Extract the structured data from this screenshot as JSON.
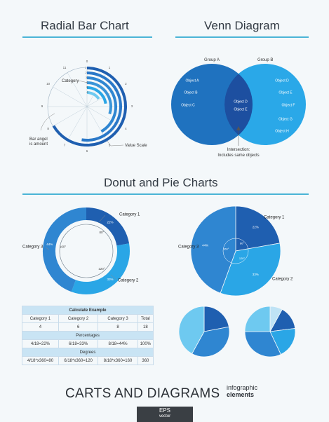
{
  "sections": {
    "radial_title": "Radial Bar Chart",
    "venn_title": "Venn Diagram",
    "donut_title": "Donut and Pie Charts"
  },
  "colors": {
    "accent": "#4ab4d6",
    "dark_blue": "#1f5fb0",
    "mid_blue": "#2f86d1",
    "light_blue": "#2aa6e6",
    "pale_blue": "#6ec9f0"
  },
  "chart_data": [
    {
      "type": "radial-bar",
      "title": "Radial Bar Chart",
      "ticks": [
        "0",
        "1",
        "2",
        "3",
        "4",
        "5",
        "6",
        "7",
        "8",
        "9",
        "10",
        "11"
      ],
      "category_tick_labels": [
        "1",
        "2",
        "3",
        "4",
        "5",
        "6"
      ],
      "values": [
        8,
        6.3,
        5,
        3.6,
        2.7,
        1.9
      ],
      "annotations": {
        "category": "Category",
        "bar_angle_line1": "Bar angel",
        "bar_angle_line2": "is amount",
        "value_scale": "Value Scale"
      }
    },
    {
      "type": "venn",
      "title": "Venn Diagram",
      "group_a": {
        "name": "Group A",
        "objects": [
          "Object A",
          "Object B",
          "Object C",
          "Object D",
          "Object E"
        ]
      },
      "group_b": {
        "name": "Group B",
        "objects": [
          "Object D",
          "Object E",
          "Object F",
          "Object G",
          "Object H"
        ]
      },
      "intersection": [
        "Object D",
        "Object E"
      ],
      "intersection_note_line1": "Intersection:",
      "intersection_note_line2": "Includes same objects"
    },
    {
      "type": "donut",
      "slices": [
        {
          "name": "Category 1",
          "value": 22,
          "label": "22%",
          "angle_label": "80°"
        },
        {
          "name": "Category 2",
          "value": 33,
          "label": "33%",
          "angle_label": "120°"
        },
        {
          "name": "Category 3",
          "value": 44,
          "label": "44%",
          "angle_label": "160°"
        }
      ]
    },
    {
      "type": "pie",
      "slices": [
        {
          "name": "Category 1",
          "value": 22,
          "label": "22%",
          "angle_label": "80°"
        },
        {
          "name": "Category 2",
          "value": 33,
          "label": "33%",
          "angle_label": "120°"
        },
        {
          "name": "Category 3",
          "value": 44,
          "label": "44%",
          "angle_label": "160°"
        }
      ]
    },
    {
      "type": "pie",
      "slices": [
        {
          "value": 22
        },
        {
          "value": 36
        },
        {
          "value": 42
        }
      ]
    },
    {
      "type": "pie",
      "slices": [
        {
          "value": 8
        },
        {
          "value": 15
        },
        {
          "value": 20
        },
        {
          "value": 32
        },
        {
          "value": 25
        }
      ]
    },
    {
      "type": "table",
      "title": "Calculate Example",
      "headers": [
        "Category 1",
        "Category 2",
        "Category 3",
        "Total"
      ],
      "values": [
        "4",
        "6",
        "8",
        "18"
      ],
      "percentages_title": "Percentages",
      "percentages": [
        "4/18=22%",
        "6/18=33%",
        "8/18=44%",
        "100%"
      ],
      "degrees_title": "Degrees",
      "degrees": [
        "4/18*x360=80",
        "6/18*x360=120",
        "8/18*x360=160",
        "360"
      ]
    }
  ],
  "footer": {
    "main": "CARTS AND DIAGRAMS",
    "sub_line1": "infographic",
    "sub_line2": "elements",
    "eps_line1": "EPS",
    "eps_line2": "vector"
  }
}
